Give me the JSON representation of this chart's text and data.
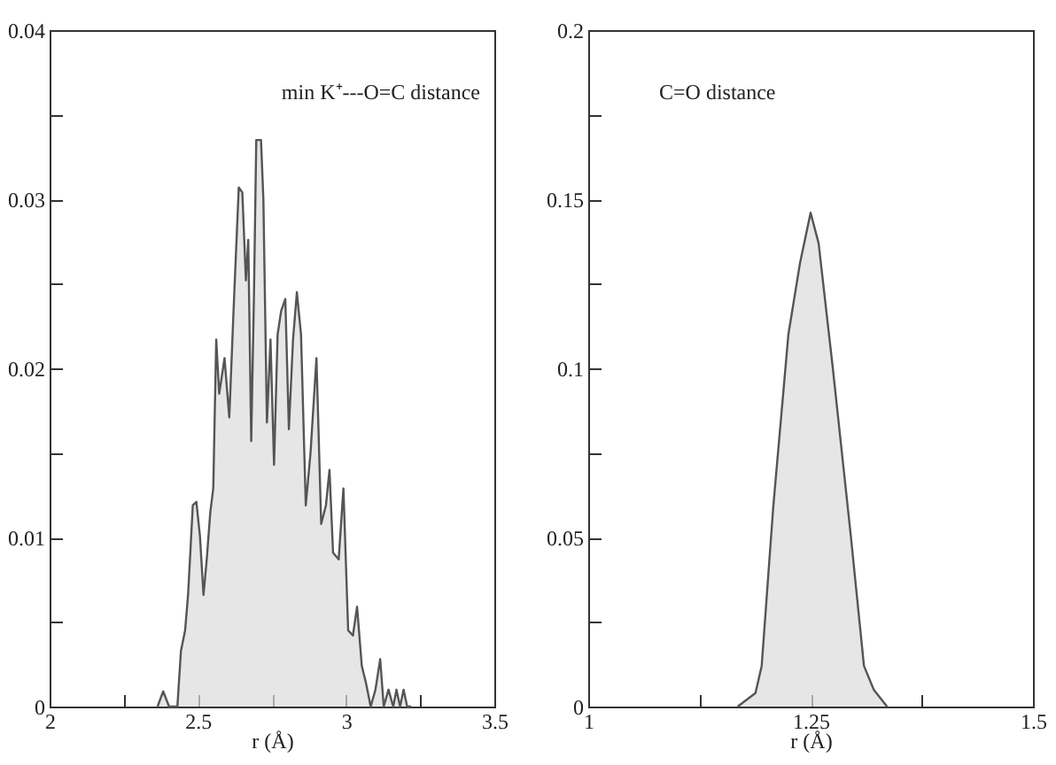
{
  "chart_data": [
    {
      "type": "area",
      "xlabel": "r (Å)",
      "annotations": [
        "min K⁺---O=C distance"
      ],
      "xlim": [
        2,
        3.5
      ],
      "ylim": [
        0,
        0.04
      ],
      "xticks": [
        2,
        {
          "value": 2.25,
          "label": null
        },
        2.5,
        {
          "value": 2.75,
          "label": null
        },
        3,
        {
          "value": 3.25,
          "label": null
        },
        3.5
      ],
      "yticks": [
        0,
        {
          "value": 0.005,
          "label": null
        },
        0.01,
        {
          "value": 0.015,
          "label": null
        },
        0.02,
        {
          "value": 0.025,
          "label": null
        },
        0.03,
        {
          "value": 0.035,
          "label": null
        },
        0.04
      ],
      "series": [
        {
          "color": "#dcdcdc",
          "x": [
            2.364,
            2.383,
            2.403,
            2.431,
            2.443,
            2.457,
            2.467,
            2.483,
            2.495,
            2.507,
            2.519,
            2.53,
            2.542,
            2.552,
            2.562,
            2.572,
            2.59,
            2.606,
            2.622,
            2.638,
            2.65,
            2.662,
            2.67,
            2.68,
            2.689,
            2.697,
            2.713,
            2.721,
            2.733,
            2.745,
            2.757,
            2.769,
            2.781,
            2.795,
            2.807,
            2.821,
            2.834,
            2.848,
            2.864,
            2.88,
            2.9,
            2.916,
            2.932,
            2.944,
            2.956,
            2.975,
            2.991,
            3.007,
            3.023,
            3.037,
            3.053,
            3.067,
            3.083,
            3.099,
            3.115,
            3.127,
            3.143,
            3.159,
            3.17,
            3.182,
            3.194,
            3.206,
            3.22
          ],
          "values": [
            0,
            0.0009,
            0,
            0,
            0.0033,
            0.0045,
            0.0066,
            0.0119,
            0.0121,
            0.0101,
            0.0066,
            0.0087,
            0.0115,
            0.0129,
            0.0217,
            0.0185,
            0.0206,
            0.0171,
            0.0241,
            0.0307,
            0.0304,
            0.0252,
            0.0276,
            0.0157,
            0.0241,
            0.0335,
            0.0335,
            0.03,
            0.0168,
            0.0217,
            0.0143,
            0.022,
            0.0234,
            0.0241,
            0.0164,
            0.0217,
            0.0245,
            0.022,
            0.0119,
            0.015,
            0.0206,
            0.0108,
            0.0119,
            0.014,
            0.0091,
            0.0087,
            0.0129,
            0.0045,
            0.0042,
            0.0059,
            0.0024,
            0.0014,
            0,
            0.001,
            0.0028,
            0,
            0.001,
            0,
            0.001,
            0,
            0.001,
            0,
            0
          ]
        }
      ]
    },
    {
      "type": "area",
      "xlabel": "r (Å)",
      "annotations": [
        "C=O distance"
      ],
      "xlim": [
        1,
        1.5
      ],
      "ylim": [
        0,
        0.2
      ],
      "xticks": [
        1,
        {
          "value": 1.125,
          "label": null
        },
        1.25,
        {
          "value": 1.375,
          "label": null
        },
        1.5
      ],
      "yticks": [
        0,
        {
          "value": 0.025,
          "label": null
        },
        0.05,
        {
          "value": 0.075,
          "label": null
        },
        0.1,
        {
          "value": 0.125,
          "label": null
        },
        0.15,
        {
          "value": 0.175,
          "label": null
        },
        0.2
      ],
      "series": [
        {
          "color": "#dcdcdc",
          "x": [
            1.168,
            1.188,
            1.195,
            1.208,
            1.225,
            1.238,
            1.25,
            1.259,
            1.275,
            1.295,
            1.31,
            1.321,
            1.336
          ],
          "values": [
            0,
            0.004,
            0.012,
            0.059,
            0.11,
            0.131,
            0.146,
            0.137,
            0.1,
            0.051,
            0.012,
            0.005,
            0
          ]
        }
      ]
    }
  ]
}
